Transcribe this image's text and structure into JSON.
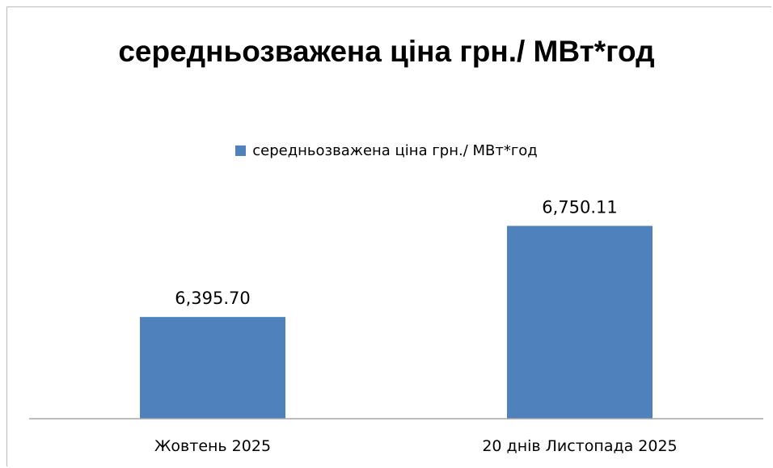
{
  "chart_data": {
    "type": "bar",
    "title": "середньозважена ціна грн./ МВт*год",
    "categories": [
      "Жовтень 2025",
      "20 днів Листопада 2025"
    ],
    "series": [
      {
        "name": "середньозважена ціна грн./ МВт*год",
        "values": [
          6395.7,
          6750.11
        ],
        "labels": [
          "6,395.70",
          "6,750.11"
        ],
        "color": "#4f81bd"
      }
    ],
    "ylim": [
      6000,
      7000
    ],
    "legend_position": "top",
    "grid": false
  }
}
